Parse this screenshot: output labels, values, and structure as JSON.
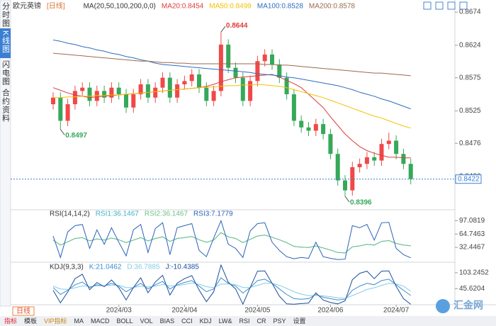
{
  "sidebar_tabs": [
    "分时图",
    "K线图",
    "闪电图",
    "合约资料"
  ],
  "period_button": "日线",
  "toolbar": [
    "指标",
    "模板",
    "VIP指标",
    "MA",
    "MACD",
    "BOLL",
    "VOL",
    "BIAS",
    "CCI",
    "KDJ",
    "LW&",
    "RSI",
    "CR",
    "PSY",
    "设置"
  ],
  "logo": "汇金网",
  "chart_data": [
    {
      "type": "candlestick",
      "title": "欧元英镑",
      "period": "[日线]",
      "indicator": "MA(20,50,100,200,0,0)",
      "up_color": "#f04848",
      "down_color": "#36a85a",
      "categories": [
        null,
        null,
        null,
        null,
        null,
        null,
        null,
        null,
        null,
        "2024/03",
        null,
        null,
        null,
        null,
        null,
        null,
        null,
        null,
        "2024/04",
        null,
        null,
        null,
        null,
        null,
        null,
        null,
        null,
        null,
        "2024/05",
        null,
        null,
        null,
        null,
        null,
        null,
        null,
        null,
        null,
        "2024/06",
        null,
        null,
        null,
        null,
        null,
        null,
        null,
        null,
        "2024/07",
        null,
        null
      ],
      "open": [
        0.8535,
        0.8545,
        0.851,
        0.8535,
        0.8555,
        0.856,
        0.854,
        0.8555,
        0.8545,
        0.856,
        0.855,
        0.853,
        0.855,
        0.8565,
        0.8545,
        0.856,
        0.8575,
        0.8545,
        0.8565,
        0.857,
        0.858,
        0.856,
        0.854,
        0.8555,
        0.8625,
        0.859,
        0.8575,
        0.854,
        0.857,
        0.86,
        0.861,
        0.8595,
        0.8575,
        0.855,
        0.851,
        0.85,
        0.8495,
        0.8505,
        0.849,
        0.846,
        0.842,
        0.8405,
        0.844,
        0.8445,
        0.8455,
        0.845,
        0.8475,
        0.848,
        0.846,
        0.8445
      ],
      "high": [
        0.8553,
        0.8553,
        0.8543,
        0.8563,
        0.8568,
        0.8568,
        0.8563,
        0.8563,
        0.8568,
        0.8568,
        0.8558,
        0.8558,
        0.8573,
        0.8573,
        0.8568,
        0.8583,
        0.8583,
        0.8573,
        0.8578,
        0.8588,
        0.8588,
        0.8568,
        0.8563,
        0.8644,
        0.8633,
        0.8598,
        0.8583,
        0.8578,
        0.8608,
        0.8618,
        0.8618,
        0.8603,
        0.8583,
        0.8558,
        0.8518,
        0.8508,
        0.8513,
        0.8513,
        0.8498,
        0.8468,
        0.8428,
        0.8448,
        0.8453,
        0.8463,
        0.8463,
        0.8483,
        0.8492,
        0.8488,
        0.8468,
        0.8453
      ],
      "low": [
        0.8527,
        0.8497,
        0.8502,
        0.8527,
        0.8547,
        0.8532,
        0.8532,
        0.8537,
        0.8537,
        0.8542,
        0.8522,
        0.8522,
        0.8542,
        0.8537,
        0.8537,
        0.8552,
        0.8537,
        0.8537,
        0.8557,
        0.8562,
        0.8552,
        0.8532,
        0.8532,
        0.8547,
        0.8582,
        0.8567,
        0.8532,
        0.8532,
        0.8562,
        0.8592,
        0.8587,
        0.8567,
        0.8542,
        0.8502,
        0.8492,
        0.8487,
        0.8487,
        0.8482,
        0.8452,
        0.8412,
        0.8396,
        0.8397,
        0.8432,
        0.8437,
        0.8442,
        0.8442,
        0.8467,
        0.8452,
        0.8437,
        0.8414
      ],
      "close": [
        0.8545,
        0.851,
        0.8535,
        0.8555,
        0.856,
        0.854,
        0.8555,
        0.8545,
        0.856,
        0.855,
        0.853,
        0.855,
        0.8565,
        0.8545,
        0.856,
        0.8575,
        0.8545,
        0.8565,
        0.857,
        0.858,
        0.856,
        0.854,
        0.8555,
        0.8625,
        0.859,
        0.8575,
        0.854,
        0.857,
        0.86,
        0.861,
        0.8595,
        0.8575,
        0.855,
        0.851,
        0.85,
        0.8495,
        0.8505,
        0.849,
        0.846,
        0.842,
        0.8405,
        0.844,
        0.8445,
        0.8455,
        0.845,
        0.8475,
        0.848,
        0.846,
        0.8445,
        0.8422
      ],
      "series": [
        {
          "name": "MA20:0.8454",
          "color": "#e03c3c",
          "values": [
            0.856,
            0.8556,
            0.8552,
            0.8549,
            0.8547,
            0.8545,
            0.8546,
            0.8547,
            0.8548,
            0.8549,
            0.855,
            0.8551,
            0.8552,
            0.8553,
            0.8554,
            0.8555,
            0.8556,
            0.8557,
            0.8558,
            0.8559,
            0.856,
            0.8562,
            0.8565,
            0.8569,
            0.8572,
            0.8575,
            0.8576,
            0.8577,
            0.8578,
            0.8579,
            0.858,
            0.8576,
            0.8571,
            0.8566,
            0.856,
            0.855,
            0.854,
            0.853,
            0.8516,
            0.8503,
            0.849,
            0.848,
            0.8471,
            0.8465,
            0.8461,
            0.8458,
            0.8455,
            0.8455,
            0.8454,
            0.8454
          ]
        },
        {
          "name": "MA50:0.8499",
          "color": "#f2c200",
          "values": [
            0.8545,
            0.8545,
            0.8546,
            0.8546,
            0.8547,
            0.8547,
            0.8548,
            0.8548,
            0.8549,
            0.8549,
            0.855,
            0.8551,
            0.8552,
            0.8553,
            0.8554,
            0.8555,
            0.8556,
            0.8557,
            0.8558,
            0.8559,
            0.856,
            0.8561,
            0.8561,
            0.8562,
            0.8563,
            0.8563,
            0.8564,
            0.8564,
            0.8565,
            0.8564,
            0.8563,
            0.8562,
            0.856,
            0.8557,
            0.8554,
            0.8551,
            0.8548,
            0.8545,
            0.8541,
            0.8537,
            0.8533,
            0.8529,
            0.8525,
            0.8521,
            0.8517,
            0.8514,
            0.851,
            0.8506,
            0.8502,
            0.8499
          ]
        },
        {
          "name": "MA100:0.8528",
          "color": "#2f6cc0",
          "values": [
            0.8632,
            0.863,
            0.8627,
            0.8625,
            0.8622,
            0.862,
            0.8617,
            0.8615,
            0.8612,
            0.861,
            0.8607,
            0.8605,
            0.8602,
            0.86,
            0.8597,
            0.8595,
            0.8594,
            0.8593,
            0.8592,
            0.8591,
            0.859,
            0.8589,
            0.8588,
            0.8587,
            0.8586,
            0.8585,
            0.8584,
            0.8583,
            0.8581,
            0.858,
            0.8579,
            0.8578,
            0.8576,
            0.8575,
            0.8573,
            0.8571,
            0.8569,
            0.8567,
            0.8565,
            0.8563,
            0.856,
            0.8557,
            0.8553,
            0.855,
            0.8547,
            0.8543,
            0.854,
            0.8536,
            0.8532,
            0.8528
          ]
        },
        {
          "name": "MA200:0.8578",
          "color": "#9a6a4e",
          "values": [
            0.8612,
            0.8611,
            0.861,
            0.8609,
            0.8608,
            0.8607,
            0.8606,
            0.8605,
            0.8604,
            0.8603,
            0.8602,
            0.8601,
            0.86,
            0.86,
            0.8599,
            0.8598,
            0.8598,
            0.8597,
            0.8597,
            0.8596,
            0.8596,
            0.8596,
            0.8596,
            0.8596,
            0.8596,
            0.8596,
            0.8596,
            0.8596,
            0.8596,
            0.8595,
            0.8595,
            0.8594,
            0.8594,
            0.8593,
            0.8592,
            0.8591,
            0.859,
            0.8589,
            0.8588,
            0.8587,
            0.8586,
            0.8585,
            0.8584,
            0.8583,
            0.8582,
            0.8582,
            0.8581,
            0.858,
            0.8579,
            0.8578
          ]
        }
      ],
      "ylim": [
        0.838,
        0.8688
      ],
      "yticks": [
        0.8674,
        0.8624,
        0.8575,
        0.8525,
        0.8476,
        0.8426
      ],
      "grid": false
    },
    {
      "type": "line",
      "title": "RSI(14,14,2)",
      "series": [
        {
          "name": "RSI1:36.1467",
          "color": "#3fb2c4",
          "values": [
            50,
            38,
            46,
            54,
            56,
            48,
            53,
            50,
            55,
            51,
            44,
            50,
            56,
            48,
            54,
            58,
            47,
            54,
            56,
            59,
            51,
            45,
            50,
            68,
            58,
            54,
            44,
            52,
            60,
            62,
            57,
            51,
            44,
            35,
            33,
            32,
            36,
            31,
            26,
            20,
            19,
            34,
            36,
            40,
            38,
            47,
            49,
            42,
            38,
            36.1467
          ]
        },
        {
          "name": "RSI2:36.1467",
          "color": "#6cc08a",
          "values": [
            50,
            38,
            46,
            54,
            56,
            48,
            53,
            50,
            55,
            51,
            44,
            50,
            56,
            48,
            54,
            58,
            47,
            54,
            56,
            59,
            51,
            45,
            50,
            68,
            58,
            54,
            44,
            52,
            60,
            62,
            57,
            51,
            44,
            35,
            33,
            32,
            36,
            31,
            26,
            20,
            19,
            34,
            36,
            40,
            38,
            47,
            49,
            42,
            38,
            36.1467
          ]
        },
        {
          "name": "RSI3:7.1779",
          "color": "#2a62b8",
          "values": [
            60,
            8,
            70,
            85,
            88,
            30,
            75,
            40,
            80,
            45,
            12,
            75,
            88,
            20,
            78,
            92,
            15,
            80,
            85,
            90,
            25,
            10,
            55,
            97,
            40,
            30,
            8,
            72,
            90,
            92,
            45,
            25,
            10,
            5,
            8,
            6,
            45,
            10,
            6,
            3,
            4,
            85,
            80,
            88,
            50,
            92,
            93,
            30,
            15,
            7.1779
          ]
        }
      ],
      "ylim": [
        0,
        120
      ],
      "yticks": [
        97.0819,
        64.7463,
        32.4467
      ],
      "grid": false
    },
    {
      "type": "line",
      "title": "KDJ(9,3,3)",
      "series": [
        {
          "name": "K:21.0462",
          "color": "#3c8dcc",
          "values": [
            50,
            25,
            40,
            60,
            70,
            50,
            60,
            55,
            65,
            55,
            35,
            50,
            65,
            45,
            60,
            72,
            45,
            60,
            68,
            75,
            55,
            35,
            45,
            85,
            65,
            55,
            30,
            50,
            75,
            80,
            65,
            45,
            25,
            10,
            8,
            10,
            25,
            15,
            10,
            5,
            8,
            40,
            55,
            65,
            60,
            75,
            80,
            60,
            40,
            21.0462
          ]
        },
        {
          "name": "D:36.7885",
          "color": "#86cbe8",
          "values": [
            55,
            45,
            43,
            49,
            56,
            54,
            56,
            56,
            59,
            58,
            50,
            50,
            55,
            52,
            55,
            61,
            56,
            57,
            61,
            66,
            62,
            53,
            50,
            62,
            63,
            60,
            50,
            50,
            58,
            65,
            65,
            58,
            47,
            35,
            26,
            21,
            22,
            20,
            17,
            13,
            11,
            21,
            32,
            43,
            49,
            58,
            65,
            63,
            55,
            36.7885
          ]
        },
        {
          "name": "J:-10.4385",
          "color": "#1b4f9c",
          "values": [
            40,
            -5,
            34,
            82,
            98,
            42,
            68,
            53,
            77,
            49,
            5,
            50,
            85,
            31,
            70,
            94,
            23,
            66,
            82,
            93,
            41,
            -1,
            35,
            131,
            69,
            45,
            -10,
            50,
            109,
            110,
            65,
            19,
            -9,
            -10,
            -8,
            -6,
            31,
            5,
            -4,
            -9,
            2,
            78,
            101,
            109,
            82,
            109,
            110,
            54,
            10,
            -10.4385
          ]
        }
      ],
      "ylim": [
        -12,
        136
      ],
      "yticks": [
        103.2452,
        45.6204
      ],
      "grid": false
    }
  ]
}
